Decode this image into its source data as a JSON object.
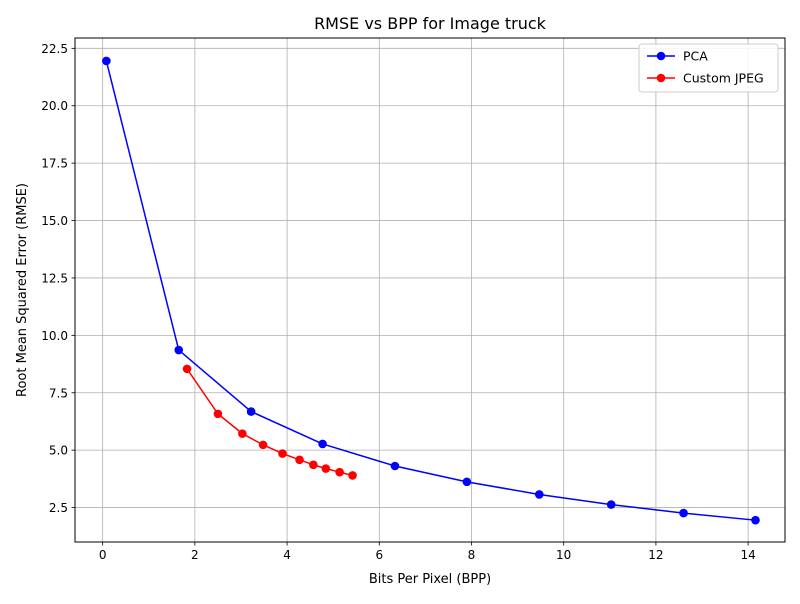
{
  "chart_data": {
    "type": "line",
    "title": "RMSE vs BPP for Image truck",
    "xlabel": "Bits Per Pixel (BPP)",
    "ylabel": "Root Mean Squared Error (RMSE)",
    "xlim": [
      -0.6,
      14.8
    ],
    "ylim": [
      1.0,
      22.95
    ],
    "xticks": [
      0,
      2,
      4,
      6,
      8,
      10,
      12,
      14
    ],
    "xtick_labels": [
      "0",
      "2",
      "4",
      "6",
      "8",
      "10",
      "12",
      "14"
    ],
    "yticks": [
      2.5,
      5.0,
      7.5,
      10.0,
      12.5,
      15.0,
      17.5,
      20.0,
      22.5
    ],
    "ytick_labels": [
      "2.5",
      "5.0",
      "7.5",
      "10.0",
      "12.5",
      "15.0",
      "17.5",
      "20.0",
      "22.5"
    ],
    "grid": true,
    "legend_position": "top-right",
    "series": [
      {
        "name": "PCA",
        "color": "#0000ff",
        "marker": "circle",
        "x": [
          0.08,
          1.65,
          3.22,
          4.77,
          6.34,
          7.9,
          9.47,
          11.03,
          12.6,
          14.16
        ],
        "y": [
          21.95,
          9.36,
          6.68,
          5.27,
          4.31,
          3.62,
          3.07,
          2.63,
          2.26,
          1.95
        ]
      },
      {
        "name": "Custom JPEG",
        "color": "#ff0000",
        "marker": "circle",
        "x": [
          1.83,
          2.5,
          3.03,
          3.48,
          3.9,
          4.27,
          4.57,
          4.84,
          5.14,
          5.42
        ],
        "y": [
          8.54,
          6.58,
          5.72,
          5.23,
          4.85,
          4.58,
          4.36,
          4.2,
          4.04,
          3.9
        ]
      }
    ]
  }
}
